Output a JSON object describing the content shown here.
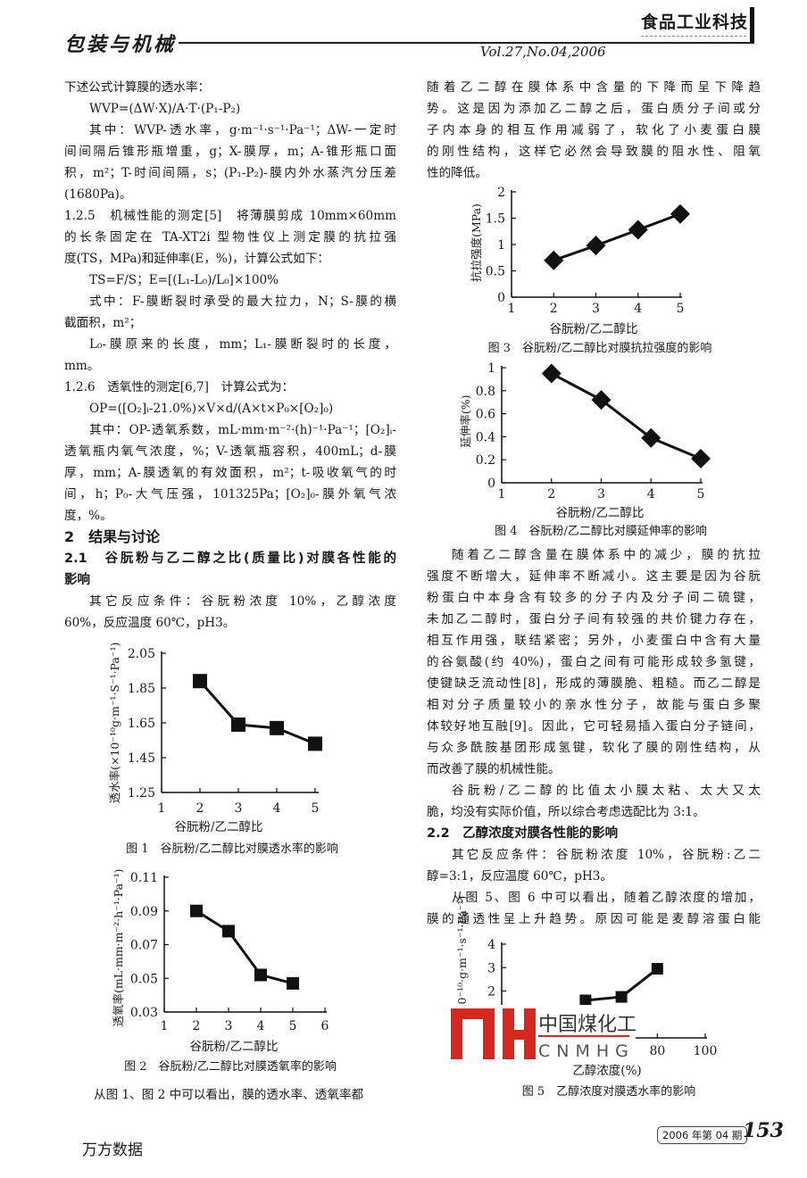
{
  "header": {
    "journal_left": "包装与机械",
    "volume": "Vol.27,No.04,2006",
    "journal_right": "食品工业科技"
  },
  "footer": {
    "source": "万方数据",
    "issue": "2006 年第 04 期",
    "page_number": "153"
  },
  "watermark": {
    "mark": "MH",
    "cn": "中国煤化工",
    "en": "CNMHG",
    "color": "#d7261e"
  },
  "body": {
    "left_top": [
      {
        "cls": "",
        "text": "下述公式计算膜的透水率："
      },
      {
        "cls": "ind",
        "text": "WVP=(ΔW·X)/A·T·(P₁-P₂)"
      },
      {
        "cls": "ind j",
        "text": "其中：WVP-透水率，g·m⁻¹·s⁻¹·Pa⁻¹；ΔW-一定时"
      },
      {
        "cls": "j",
        "text": "间间隔后锥形瓶增重，g；X-膜厚，m；A-锥形瓶口面"
      },
      {
        "cls": "j",
        "text": "积，m²；T-时间间隔，s；(P₁-P₂)-膜内外水蒸汽分压差"
      },
      {
        "cls": "",
        "text": "(1680Pa)。"
      },
      {
        "cls": "j",
        "text": "1.2.5　机械性能的测定[5]　将薄膜剪成 10mm×60mm"
      },
      {
        "cls": "j",
        "text": "的长条固定在 TA-XT2i 型物性仪上测定膜的抗拉强"
      },
      {
        "cls": "",
        "text": "度(TS，MPa)和延伸率(E，%)，计算公式如下："
      },
      {
        "cls": "ind",
        "text": "TS=F/S；E=[(L₁-L₀)/L₀]×100%"
      },
      {
        "cls": "ind j",
        "text": "式中：F-膜断裂时承受的最大拉力，N；S-膜的横"
      },
      {
        "cls": "",
        "text": "截面积，m²；"
      },
      {
        "cls": "ind j",
        "text": "L₀-膜原来的长度，mm；L₁-膜断裂时的长度，"
      },
      {
        "cls": "",
        "text": "mm。"
      },
      {
        "cls": "",
        "text": "1.2.6　透氧性的测定[6,7]　计算公式为："
      },
      {
        "cls": "ind",
        "text": "OP=([O₂]ᵢ-21.0%)×V×d/(A×t×P₀×[O₂]₀)"
      },
      {
        "cls": "ind j",
        "text": "其中：OP-透氧系数，mL·mm·m⁻²·(h)⁻¹·Pa⁻¹；[O₂]ᵢ-"
      },
      {
        "cls": "j",
        "text": "透氧瓶内氧气浓度，%；V-透氧瓶容积，400mL；d-膜"
      },
      {
        "cls": "j",
        "text": "厚，mm；A-膜透氧的有效面积，m²；t-吸收氧气的时"
      },
      {
        "cls": "j",
        "text": "间，h；P₀-大气压强，101325Pa；[O₂]₀-膜外氧气浓"
      },
      {
        "cls": "",
        "text": "度，%。"
      },
      {
        "cls": "h1",
        "text": "2　结果与讨论"
      },
      {
        "cls": "h2 j",
        "text": "2.1　谷朊粉与乙二醇之比(质量比)对膜各性能的"
      },
      {
        "cls": "h2",
        "text": "影响"
      },
      {
        "cls": "ind j",
        "text": "其它反应条件：谷朊粉浓度 10%，乙醇浓度"
      },
      {
        "cls": "",
        "text": "60%，反应温度 60℃，pH3。"
      }
    ],
    "left_bottom": [
      {
        "cls": "ind",
        "text": "从图 1、图 2 中可以看出，膜的透水率、透氧率都"
      }
    ],
    "right_top": [
      {
        "cls": "j",
        "text": "随着乙二醇在膜体系中含量的下降而呈下降趋"
      },
      {
        "cls": "j",
        "text": "势。这是因为添加乙二醇之后，蛋白质分子间或分"
      },
      {
        "cls": "j",
        "text": "子内本身的相互作用减弱了，软化了小麦蛋白膜"
      },
      {
        "cls": "j",
        "text": "的刚性结构，这样它必然会导致膜的阻水性、阻氧"
      },
      {
        "cls": "",
        "text": "性的降低。"
      }
    ],
    "right_middle": [
      {
        "cls": "ind j",
        "text": "随着乙二醇含量在膜体系中的减少，膜的抗拉"
      },
      {
        "cls": "j",
        "text": "强度不断增大，延伸率不断减小。这主要是因为谷朊"
      },
      {
        "cls": "j",
        "text": "粉蛋白中本身含有较多的分子内及分子间二硫键，"
      },
      {
        "cls": "j",
        "text": "未加乙二醇时，蛋白分子间有较强的共价键力存在，"
      },
      {
        "cls": "j",
        "text": "相互作用强，联结紧密；另外，小麦蛋白中含有大量"
      },
      {
        "cls": "j",
        "text": "的谷氨酸(约 40%)，蛋白之间有可能形成较多氢键，"
      },
      {
        "cls": "j",
        "text": "使键缺乏流动性[8]，形成的薄膜脆、粗糙。而乙二醇是"
      },
      {
        "cls": "j",
        "text": "相对分子质量较小的亲水性分子，故能与蛋白多聚"
      },
      {
        "cls": "j",
        "text": "体较好地互融[9]。因此，它可轻易插入蛋白分子链间，"
      },
      {
        "cls": "j",
        "text": "与众多酰胺基团形成氢键，软化了膜的刚性结构，从"
      },
      {
        "cls": "",
        "text": "而改善了膜的机械性能。"
      },
      {
        "cls": "ind j",
        "text": "谷朊粉/乙二醇的比值太小膜太粘、太大又太"
      },
      {
        "cls": "",
        "text": "脆，均没有实际价值，所以综合考虑选配比为 3:1。"
      },
      {
        "cls": "h2",
        "text": "2.2　乙醇浓度对膜各性能的影响"
      },
      {
        "cls": "ind j",
        "text": "其它反应条件：谷朊粉浓度 10%，谷朊粉:乙二"
      },
      {
        "cls": "",
        "text": "醇=3:1，反应温度 60℃，pH3。"
      },
      {
        "cls": "ind j",
        "text": "从图 5、图 6 中可以看出，随着乙醇浓度的增加，"
      },
      {
        "cls": "j",
        "text": "膜的通透性呈上升趋势。原因可能是麦醇溶蛋白能"
      }
    ]
  },
  "chart_data": [
    {
      "id": "fig1",
      "type": "line",
      "marker": "square",
      "caption": "图 1　谷朊粉/乙二醇比对膜透水率的影响",
      "xlabel": "谷朊粉/乙二醇比",
      "ylabel": "透水率(×10⁻¹⁰g·m⁻¹·S⁻¹·Pa⁻¹)",
      "xlim": [
        1,
        5
      ],
      "ylim": [
        1.25,
        2.05
      ],
      "xticks": [
        1,
        2,
        3,
        4,
        5
      ],
      "yticks": [
        1.25,
        1.45,
        1.65,
        1.85,
        2.05
      ],
      "ytick_labels": [
        "1.25",
        "1.45",
        "1.65",
        "1.85",
        "2.05"
      ],
      "x": [
        2,
        3,
        4,
        5
      ],
      "y": [
        1.89,
        1.64,
        1.62,
        1.53
      ],
      "grid": false
    },
    {
      "id": "fig2",
      "type": "line",
      "marker": "square",
      "caption": "图 2　谷朊粉/乙二醇比对膜透氧率的影响",
      "xlabel": "谷朊粉/乙二醇比",
      "ylabel": "透氧率(mL·mm·m⁻²·h⁻¹·Pa⁻¹)",
      "xlim": [
        1,
        6
      ],
      "ylim": [
        0.03,
        0.11
      ],
      "xticks": [
        1,
        2,
        3,
        4,
        5,
        6
      ],
      "yticks": [
        0.03,
        0.05,
        0.07,
        0.09,
        0.11
      ],
      "ytick_labels": [
        "0.03",
        "0.05",
        "0.07",
        "0.09",
        "0.11"
      ],
      "x": [
        2,
        3,
        4,
        5
      ],
      "y": [
        0.09,
        0.078,
        0.052,
        0.047
      ],
      "grid": false
    },
    {
      "id": "fig3",
      "type": "line",
      "marker": "diamond",
      "caption": "图 3　谷朊粉/乙二醇比对膜抗拉强度的影响",
      "xlabel": "谷朊粉/乙二醇比",
      "ylabel": "抗拉强度(MPa)",
      "xlim": [
        1,
        5
      ],
      "ylim": [
        0,
        2
      ],
      "xticks": [
        1,
        2,
        3,
        4,
        5
      ],
      "yticks": [
        0,
        0.5,
        1,
        1.5,
        2
      ],
      "ytick_labels": [
        "0",
        "0.5",
        "1",
        "1.5",
        "2"
      ],
      "x": [
        2,
        3,
        4,
        5
      ],
      "y": [
        0.7,
        0.98,
        1.28,
        1.58
      ],
      "grid": false
    },
    {
      "id": "fig4",
      "type": "line",
      "marker": "diamond",
      "caption": "图 4　谷朊粉/乙二醇比对膜延伸率的影响",
      "xlabel": "谷朊粉/乙二醇比",
      "ylabel": "延伸率(%)",
      "xlim": [
        1,
        5
      ],
      "ylim": [
        0,
        1
      ],
      "xticks": [
        1,
        2,
        3,
        4,
        5
      ],
      "yticks": [
        0,
        0.2,
        0.4,
        0.6,
        0.8,
        1
      ],
      "ytick_labels": [
        "0",
        "0.2",
        "0.4",
        "0.6",
        "0.8",
        "1"
      ],
      "x": [
        2,
        3,
        4,
        5
      ],
      "y": [
        0.95,
        0.72,
        0.39,
        0.21
      ],
      "grid": false
    },
    {
      "id": "fig5",
      "type": "line",
      "marker": "square",
      "caption": "图 5　乙醇浓度对膜透水率的影响",
      "xlabel": "乙醇浓度(%)",
      "ylabel": "透水率(×10⁻¹⁰·g·m⁻¹·s⁻¹·Pa⁻¹)",
      "xlim": [
        15,
        100
      ],
      "ylim": [
        0,
        4
      ],
      "xticks": [
        80,
        100
      ],
      "yticks": [
        2,
        3,
        4
      ],
      "ytick_labels": [
        "2",
        "3",
        "4"
      ],
      "x": [
        50,
        65,
        80
      ],
      "y": [
        1.6,
        1.75,
        2.95
      ],
      "grid": false
    }
  ]
}
